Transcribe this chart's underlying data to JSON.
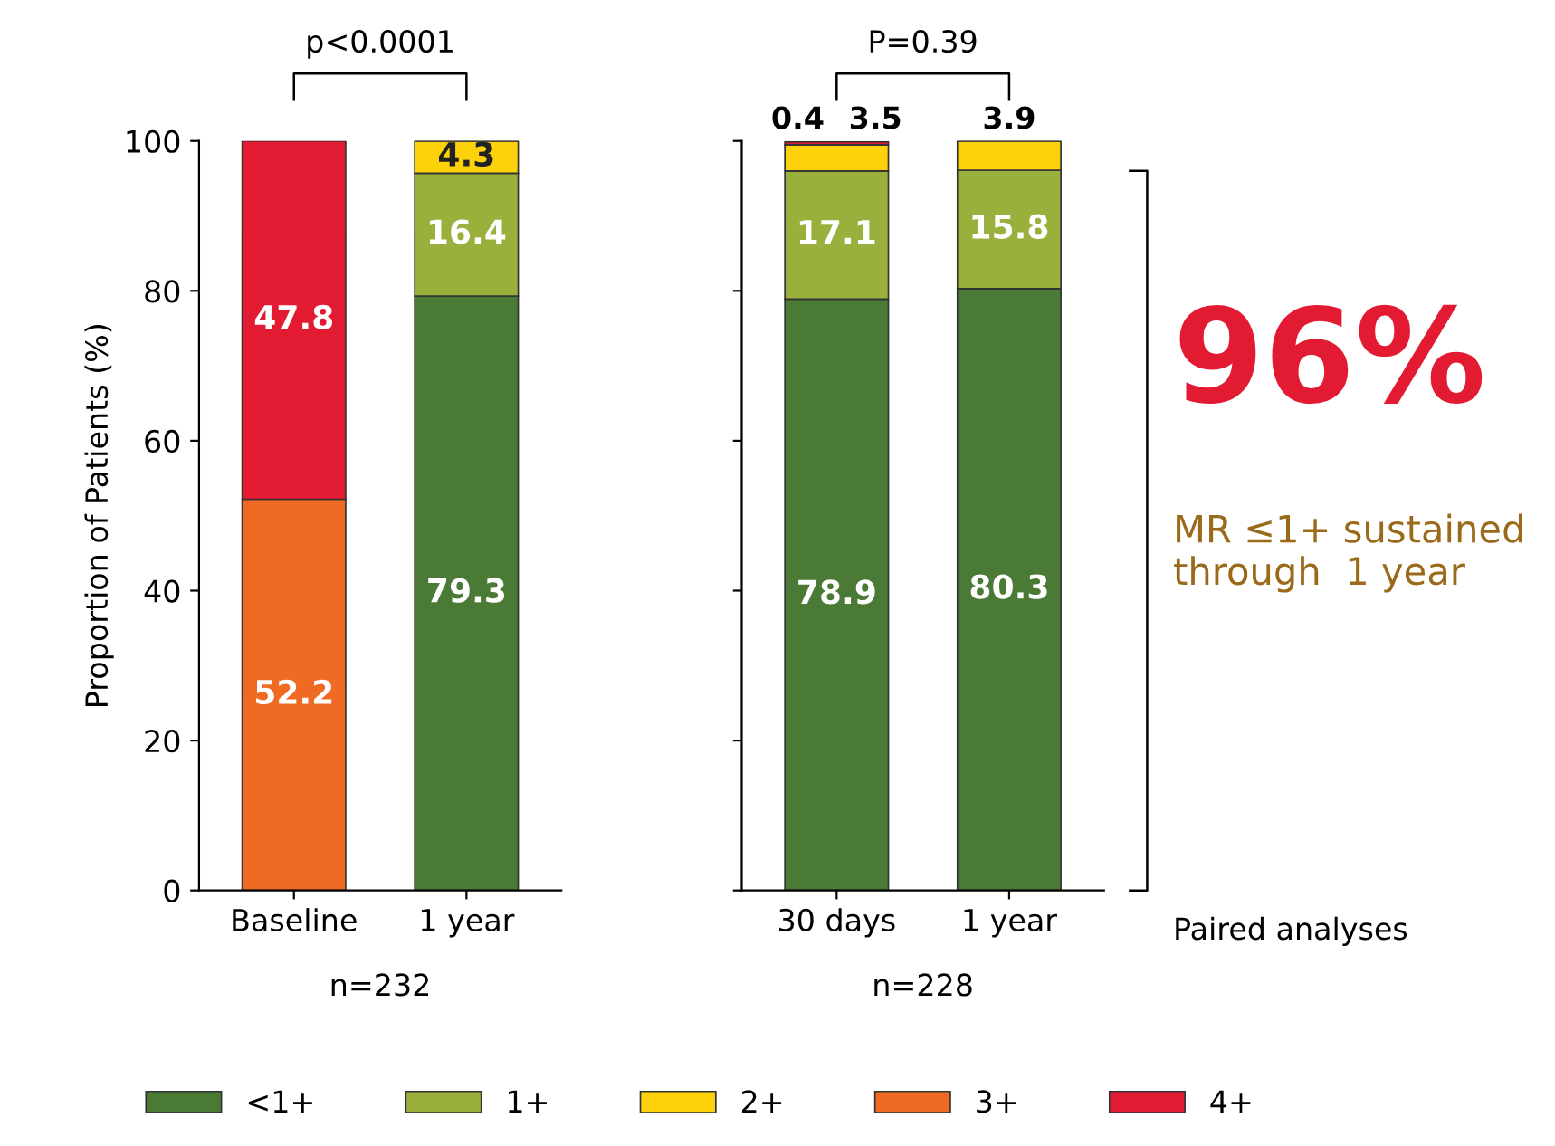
{
  "chart_data": [
    {
      "type": "bar",
      "stacked": true,
      "categories": [
        "Baseline",
        "1 year"
      ],
      "ylabel": "Proportion of Patients (%)",
      "ylim": [
        0,
        100
      ],
      "yticks": [
        0,
        20,
        40,
        60,
        80,
        100
      ],
      "data_labels": true,
      "legend": "bottom",
      "grid": false,
      "series": [
        {
          "name": "<1+",
          "color": "#4a7a35",
          "values": [
            null,
            79.3
          ]
        },
        {
          "name": "1+",
          "color": "#9ab03c",
          "values": [
            null,
            16.4
          ]
        },
        {
          "name": "2+",
          "color": "#fdd20a",
          "values": [
            null,
            4.3
          ]
        },
        {
          "name": "3+",
          "color": "#ef6a23",
          "values": [
            52.2,
            null
          ]
        },
        {
          "name": "4+",
          "color": "#e31b32",
          "values": [
            47.8,
            null
          ]
        }
      ],
      "annotations": [
        "p<0.0001",
        "n=232"
      ]
    },
    {
      "type": "bar",
      "stacked": true,
      "categories": [
        "30 days",
        "1 year"
      ],
      "ylim": [
        0,
        100
      ],
      "yticks": [
        0,
        20,
        40,
        60,
        80,
        100
      ],
      "tick_labels": "x",
      "data_labels": true,
      "grid": false,
      "series": [
        {
          "color": "#4a7a35",
          "values": [
            78.9,
            80.3
          ]
        },
        {
          "color": "#9ab03c",
          "values": [
            17.1,
            15.8
          ]
        },
        {
          "color": "#fdd20a",
          "values": [
            3.5,
            3.9
          ]
        },
        {
          "color": "#ef6a23",
          "values": [
            null,
            null
          ]
        },
        {
          "color": "#e31b32",
          "values": [
            0.4,
            null
          ]
        }
      ],
      "annotations": [
        "P=0.39",
        "n=228",
        "Paired analyses",
        "96%",
        "MR ≤1+ sustained through  1 year"
      ]
    }
  ]
}
